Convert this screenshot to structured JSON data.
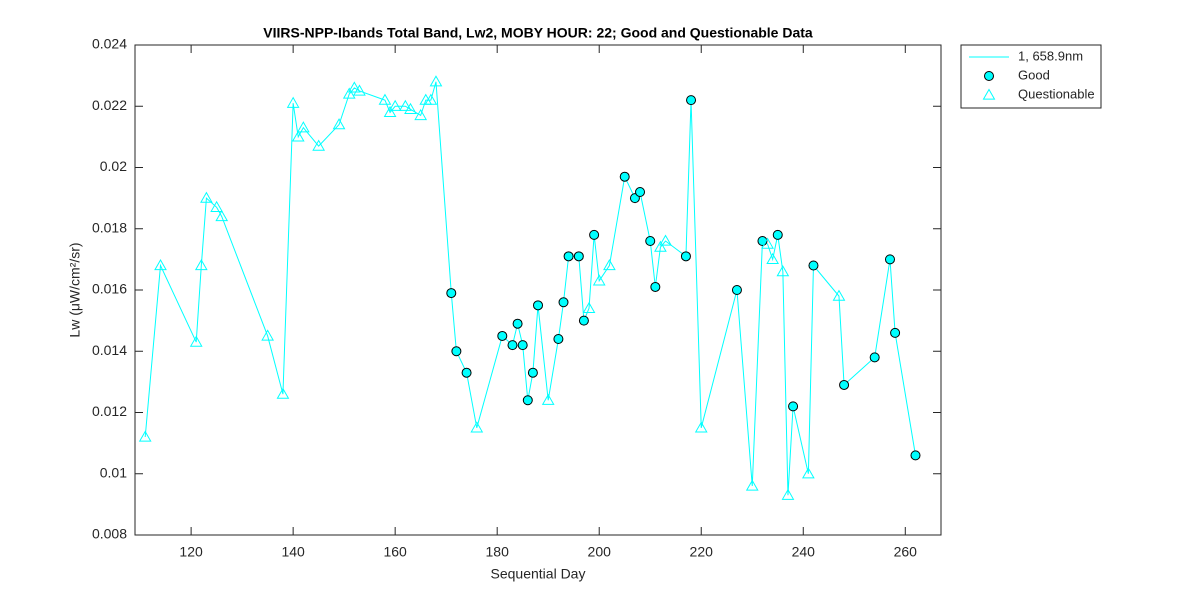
{
  "chart_data": {
    "type": "line",
    "title": "VIIRS-NPP-Ibands Total Band,  Lw2, MOBY HOUR: 22;  Good and Questionable Data",
    "xlabel": "Sequential Day",
    "ylabel": "Lw (μW/cm²/sr)",
    "xlim": [
      109,
      267
    ],
    "ylim": [
      0.008,
      0.024
    ],
    "xticks": [
      120,
      140,
      160,
      180,
      200,
      220,
      240,
      260
    ],
    "yticks": [
      0.008,
      0.01,
      0.012,
      0.014,
      0.016,
      0.018,
      0.02,
      0.022,
      0.024
    ],
    "grid": false,
    "legend": "northeastoutside",
    "series": [
      {
        "name": "1, 658.9nm",
        "color": "#00ffff",
        "style": "line",
        "x": [
          111,
          114,
          121,
          122,
          123,
          125,
          126,
          135,
          138,
          140,
          141,
          142,
          145,
          149,
          151,
          152,
          153,
          158,
          159,
          160,
          162,
          163,
          165,
          166,
          167,
          168,
          171,
          172,
          174,
          176,
          181,
          183,
          184,
          185,
          186,
          187,
          188,
          190,
          192,
          193,
          194,
          196,
          197,
          198,
          199,
          200,
          202,
          205,
          207,
          208,
          210,
          211,
          212,
          213,
          217,
          218,
          220,
          227,
          230,
          232,
          233,
          234,
          235,
          236,
          237,
          238,
          241,
          242,
          247,
          248,
          254,
          257,
          258,
          262
        ],
        "values": [
          0.0112,
          0.0168,
          0.0143,
          0.0168,
          0.019,
          0.0187,
          0.0184,
          0.0145,
          0.0126,
          0.0221,
          0.021,
          0.0213,
          0.0207,
          0.0214,
          0.0224,
          0.0226,
          0.0225,
          0.0222,
          0.0218,
          0.022,
          0.022,
          0.0219,
          0.0217,
          0.0222,
          0.0222,
          0.0228,
          0.0159,
          0.014,
          0.0133,
          0.0115,
          0.0145,
          0.0142,
          0.0149,
          0.0142,
          0.0124,
          0.0133,
          0.0155,
          0.0124,
          0.0144,
          0.0156,
          0.0171,
          0.0171,
          0.015,
          0.0154,
          0.0178,
          0.0163,
          0.0168,
          0.0197,
          0.019,
          0.0192,
          0.0176,
          0.0161,
          0.0174,
          0.0176,
          0.0171,
          0.0222,
          0.0115,
          0.016,
          0.0096,
          0.0176,
          0.0175,
          0.017,
          0.0178,
          0.0166,
          0.0093,
          0.0122,
          0.01,
          0.0168,
          0.0158,
          0.0129,
          0.0138,
          0.017,
          0.0146,
          0.0106
        ]
      },
      {
        "name": "Good",
        "color": "#00ffff",
        "edgecolor": "#000000",
        "style": "circle",
        "x": [
          171,
          172,
          174,
          181,
          183,
          184,
          185,
          186,
          187,
          188,
          192,
          193,
          194,
          196,
          197,
          199,
          205,
          207,
          208,
          210,
          211,
          217,
          218,
          227,
          232,
          235,
          238,
          242,
          248,
          254,
          257,
          258,
          262
        ],
        "values": [
          0.0159,
          0.014,
          0.0133,
          0.0145,
          0.0142,
          0.0149,
          0.0142,
          0.0124,
          0.0133,
          0.0155,
          0.0144,
          0.0156,
          0.0171,
          0.0171,
          0.015,
          0.0178,
          0.0197,
          0.019,
          0.0192,
          0.0176,
          0.0161,
          0.0171,
          0.0222,
          0.016,
          0.0176,
          0.0178,
          0.0122,
          0.0168,
          0.0129,
          0.0138,
          0.017,
          0.0146,
          0.0106
        ]
      },
      {
        "name": "Questionable",
        "color": "#00ffff",
        "style": "triangle",
        "x": [
          111,
          114,
          121,
          122,
          123,
          125,
          126,
          135,
          138,
          140,
          141,
          142,
          145,
          149,
          151,
          152,
          153,
          158,
          159,
          160,
          162,
          163,
          165,
          166,
          167,
          168,
          176,
          190,
          198,
          200,
          202,
          212,
          213,
          220,
          230,
          233,
          234,
          236,
          237,
          241,
          247
        ],
        "values": [
          0.0112,
          0.0168,
          0.0143,
          0.0168,
          0.019,
          0.0187,
          0.0184,
          0.0145,
          0.0126,
          0.0221,
          0.021,
          0.0213,
          0.0207,
          0.0214,
          0.0224,
          0.0226,
          0.0225,
          0.0222,
          0.0218,
          0.022,
          0.022,
          0.0219,
          0.0217,
          0.0222,
          0.0222,
          0.0228,
          0.0115,
          0.0124,
          0.0154,
          0.0163,
          0.0168,
          0.0174,
          0.0176,
          0.0115,
          0.0096,
          0.0175,
          0.017,
          0.0166,
          0.0093,
          0.01,
          0.0158
        ]
      }
    ]
  }
}
